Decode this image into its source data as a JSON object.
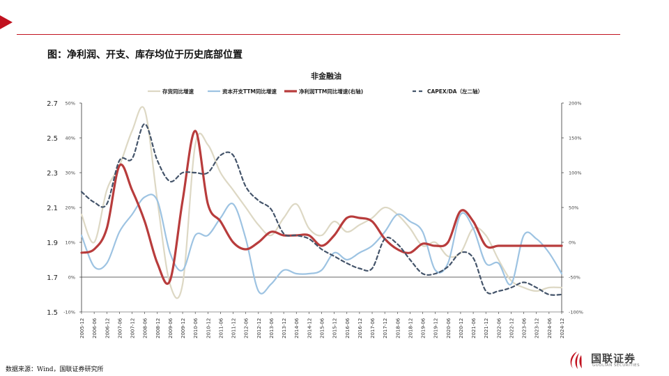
{
  "header": {
    "title": "图：净利润、开支、库存均位于历史底部位置"
  },
  "footer": {
    "source": "数据来源：Wind，国联证券研究所"
  },
  "logo": {
    "name_cn": "国联证券",
    "name_en": "GUOLIAN SECURITIES"
  },
  "colors": {
    "accent": "#c1121f"
  },
  "chart_data": {
    "type": "line",
    "title": "非金融油",
    "legend_position": "top",
    "grid": false,
    "x": [
      "2005-12",
      "2006-06",
      "2006-12",
      "2007-06",
      "2007-12",
      "2008-06",
      "2008-12",
      "2009-06",
      "2009-12",
      "2010-06",
      "2010-12",
      "2011-06",
      "2011-12",
      "2012-06",
      "2012-12",
      "2013-06",
      "2013-12",
      "2014-06",
      "2014-12",
      "2015-06",
      "2015-12",
      "2016-06",
      "2016-12",
      "2017-06",
      "2017-12",
      "2018-06",
      "2018-12",
      "2019-06",
      "2019-12",
      "2020-06",
      "2020-12",
      "2021-06",
      "2021-12",
      "2022-06",
      "2022-12",
      "2023-06",
      "2023-12",
      "2024-06",
      "2024-12"
    ],
    "axes": {
      "left_outer": {
        "ticks": [
          "1.5",
          "1.7",
          "1.9",
          "2.1",
          "2.3",
          "2.5",
          "2.7"
        ],
        "ylim": [
          1.5,
          2.7
        ]
      },
      "left_inner": {
        "ticks": [
          "-10%",
          "0%",
          "10%",
          "20%",
          "30%",
          "40%",
          "50%"
        ],
        "ylim": [
          -10,
          50
        ]
      },
      "right": {
        "ticks": [
          "-100%",
          "-50%",
          "0%",
          "50%",
          "100%",
          "150%",
          "200%"
        ],
        "ylim": [
          -100,
          200
        ]
      }
    },
    "series": [
      {
        "name": "存货同比增速",
        "color": "#ddd8c4",
        "dash": "",
        "width": 2.2,
        "axis": "left_inner",
        "values": [
          18,
          10,
          25,
          32,
          42,
          48,
          22,
          -2,
          -2,
          38,
          38,
          30,
          25,
          20,
          15,
          12,
          17,
          21,
          14,
          12,
          16,
          13,
          15,
          17,
          20,
          18,
          14,
          9,
          10,
          6,
          7,
          14,
          12,
          5,
          -1,
          -3,
          -4,
          -3,
          -3
        ]
      },
      {
        "name": "资本开支TTM同比增速",
        "color": "#9dc3e2",
        "dash": "",
        "width": 2.2,
        "axis": "left_inner",
        "values": [
          12,
          3,
          4,
          13,
          18,
          23,
          22,
          7,
          2,
          12,
          12,
          17,
          21,
          11,
          -4,
          -2,
          2,
          1,
          1,
          2,
          7,
          5,
          7,
          9,
          13,
          18,
          16,
          13,
          2,
          4,
          18,
          14,
          4,
          4,
          -2,
          12,
          11,
          7,
          1
        ]
      },
      {
        "name": "净利润TTM同比增速(右轴)",
        "color": "#b83c3c",
        "dash": "",
        "width": 3.2,
        "axis": "right",
        "values": [
          -15,
          -10,
          20,
          110,
          75,
          30,
          -30,
          -55,
          60,
          160,
          55,
          30,
          0,
          -10,
          0,
          15,
          10,
          10,
          10,
          -5,
          10,
          35,
          35,
          30,
          5,
          -10,
          -15,
          -2,
          -5,
          0,
          45,
          30,
          -5,
          -5,
          -5,
          -5,
          -5,
          -5,
          -5
        ]
      },
      {
        "name": "CAPEX/DA（左二轴）",
        "color": "#44546a",
        "dash": "5,4",
        "width": 2.2,
        "axis": "left_outer",
        "values": [
          2.19,
          2.13,
          2.12,
          2.37,
          2.38,
          2.58,
          2.37,
          2.25,
          2.3,
          2.3,
          2.3,
          2.4,
          2.4,
          2.22,
          2.14,
          2.09,
          1.95,
          1.94,
          1.92,
          1.86,
          1.82,
          1.78,
          1.75,
          1.75,
          1.92,
          1.89,
          1.8,
          1.72,
          1.72,
          1.76,
          1.84,
          1.81,
          1.62,
          1.62,
          1.64,
          1.67,
          1.64,
          1.6,
          1.6
        ]
      }
    ]
  }
}
